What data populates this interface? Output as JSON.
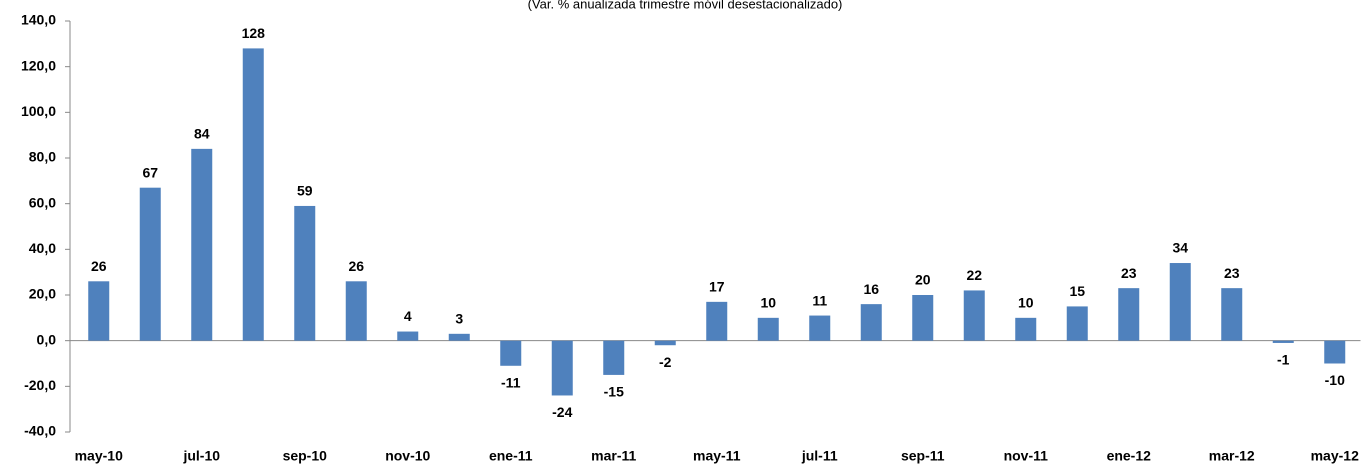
{
  "chart_data": {
    "type": "bar",
    "subtitle": "(Var. % anualizada trimestre móvil desestacionalizado)",
    "categories": [
      "may-10",
      null,
      "jul-10",
      null,
      "sep-10",
      null,
      "nov-10",
      null,
      "ene-11",
      null,
      "mar-11",
      null,
      "may-11",
      null,
      "jul-11",
      null,
      "sep-11",
      null,
      "nov-11",
      null,
      "ene-12",
      null,
      "mar-12",
      null,
      "may-12"
    ],
    "values": [
      26,
      67,
      84,
      128,
      59,
      26,
      4,
      3,
      -11,
      -24,
      -15,
      -2,
      17,
      10,
      11,
      16,
      20,
      22,
      10,
      15,
      23,
      34,
      23,
      -1,
      -10
    ],
    "color": "#4f81bd",
    "ylim": [
      -40,
      140
    ],
    "yticks": [
      {
        "value": -40,
        "label": "-40,0"
      },
      {
        "value": -20,
        "label": "-20,0"
      },
      {
        "value": 0,
        "label": "0,0"
      },
      {
        "value": 20,
        "label": "20,0"
      },
      {
        "value": 40,
        "label": "40,0"
      },
      {
        "value": 60,
        "label": "60,0"
      },
      {
        "value": 80,
        "label": "80,0"
      },
      {
        "value": 100,
        "label": "100,0"
      },
      {
        "value": 120,
        "label": "120,0"
      },
      {
        "value": 140,
        "label": "140,0"
      }
    ],
    "grid": false
  }
}
